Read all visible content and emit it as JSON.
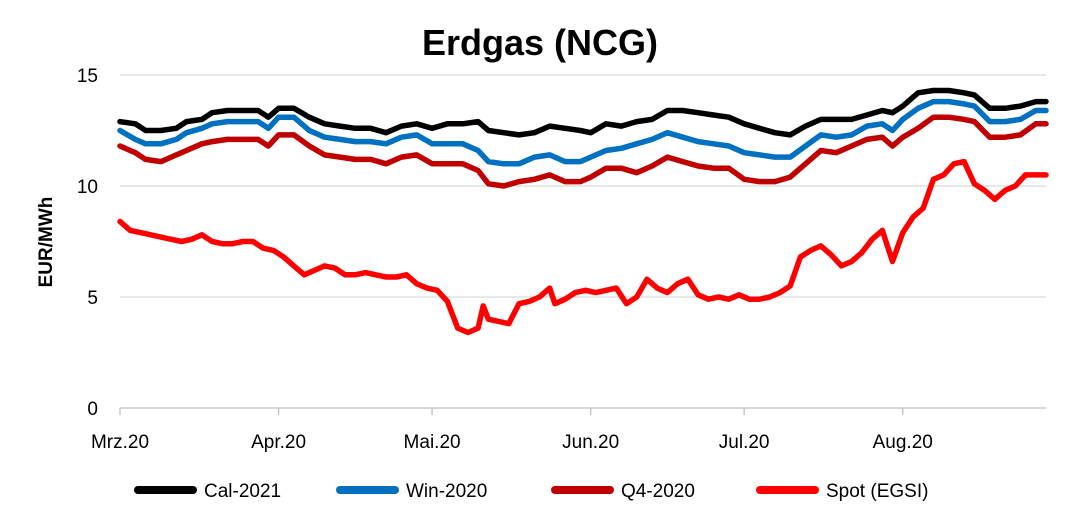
{
  "chart_data": {
    "type": "line",
    "title": "Erdgas (NCG)",
    "ylabel": "EUR/MWh",
    "xlabel": "",
    "ylim": [
      0,
      15
    ],
    "yticks": [
      0,
      5,
      10,
      15
    ],
    "xticks": [
      {
        "label": "Mrz.20",
        "day": 0
      },
      {
        "label": "Apr.20",
        "day": 31
      },
      {
        "label": "Mai.20",
        "day": 61
      },
      {
        "label": "Jun.20",
        "day": 92
      },
      {
        "label": "Jul.20",
        "day": 122
      },
      {
        "label": "Aug.20",
        "day": 153
      }
    ],
    "xmax_day": 181,
    "grid": "horizontal",
    "legend": "bottom",
    "series": [
      {
        "name": "Cal-2021",
        "color": "#000000",
        "points": [
          [
            0,
            12.9
          ],
          [
            3,
            12.8
          ],
          [
            5,
            12.5
          ],
          [
            8,
            12.5
          ],
          [
            11,
            12.6
          ],
          [
            13,
            12.9
          ],
          [
            16,
            13.0
          ],
          [
            18,
            13.3
          ],
          [
            21,
            13.4
          ],
          [
            24,
            13.4
          ],
          [
            27,
            13.4
          ],
          [
            29,
            13.1
          ],
          [
            31,
            13.5
          ],
          [
            34,
            13.5
          ],
          [
            37,
            13.1
          ],
          [
            40,
            12.8
          ],
          [
            43,
            12.7
          ],
          [
            46,
            12.6
          ],
          [
            49,
            12.6
          ],
          [
            52,
            12.4
          ],
          [
            55,
            12.7
          ],
          [
            58,
            12.8
          ],
          [
            61,
            12.6
          ],
          [
            64,
            12.8
          ],
          [
            67,
            12.8
          ],
          [
            70,
            12.9
          ],
          [
            72,
            12.5
          ],
          [
            75,
            12.4
          ],
          [
            78,
            12.3
          ],
          [
            81,
            12.4
          ],
          [
            84,
            12.7
          ],
          [
            87,
            12.6
          ],
          [
            90,
            12.5
          ],
          [
            92,
            12.4
          ],
          [
            95,
            12.8
          ],
          [
            98,
            12.7
          ],
          [
            101,
            12.9
          ],
          [
            104,
            13.0
          ],
          [
            107,
            13.4
          ],
          [
            110,
            13.4
          ],
          [
            113,
            13.3
          ],
          [
            116,
            13.2
          ],
          [
            119,
            13.1
          ],
          [
            122,
            12.8
          ],
          [
            125,
            12.6
          ],
          [
            128,
            12.4
          ],
          [
            131,
            12.3
          ],
          [
            134,
            12.7
          ],
          [
            137,
            13.0
          ],
          [
            140,
            13.0
          ],
          [
            143,
            13.0
          ],
          [
            146,
            13.2
          ],
          [
            149,
            13.4
          ],
          [
            151,
            13.3
          ],
          [
            153,
            13.6
          ],
          [
            156,
            14.2
          ],
          [
            159,
            14.3
          ],
          [
            162,
            14.3
          ],
          [
            165,
            14.2
          ],
          [
            167,
            14.1
          ],
          [
            170,
            13.5
          ],
          [
            173,
            13.5
          ],
          [
            176,
            13.6
          ],
          [
            179,
            13.8
          ],
          [
            181,
            13.8
          ]
        ]
      },
      {
        "name": "Win-2020",
        "color": "#0070c0",
        "points": [
          [
            0,
            12.5
          ],
          [
            3,
            12.1
          ],
          [
            5,
            11.9
          ],
          [
            8,
            11.9
          ],
          [
            11,
            12.1
          ],
          [
            13,
            12.4
          ],
          [
            16,
            12.6
          ],
          [
            18,
            12.8
          ],
          [
            21,
            12.9
          ],
          [
            24,
            12.9
          ],
          [
            27,
            12.9
          ],
          [
            29,
            12.6
          ],
          [
            31,
            13.1
          ],
          [
            34,
            13.1
          ],
          [
            37,
            12.5
          ],
          [
            40,
            12.2
          ],
          [
            43,
            12.1
          ],
          [
            46,
            12.0
          ],
          [
            49,
            12.0
          ],
          [
            52,
            11.9
          ],
          [
            55,
            12.2
          ],
          [
            58,
            12.3
          ],
          [
            61,
            11.9
          ],
          [
            64,
            11.9
          ],
          [
            67,
            11.9
          ],
          [
            70,
            11.6
          ],
          [
            72,
            11.1
          ],
          [
            75,
            11.0
          ],
          [
            78,
            11.0
          ],
          [
            81,
            11.3
          ],
          [
            84,
            11.4
          ],
          [
            87,
            11.1
          ],
          [
            90,
            11.1
          ],
          [
            92,
            11.3
          ],
          [
            95,
            11.6
          ],
          [
            98,
            11.7
          ],
          [
            101,
            11.9
          ],
          [
            104,
            12.1
          ],
          [
            107,
            12.4
          ],
          [
            110,
            12.2
          ],
          [
            113,
            12.0
          ],
          [
            116,
            11.9
          ],
          [
            119,
            11.8
          ],
          [
            122,
            11.5
          ],
          [
            125,
            11.4
          ],
          [
            128,
            11.3
          ],
          [
            131,
            11.3
          ],
          [
            134,
            11.8
          ],
          [
            137,
            12.3
          ],
          [
            140,
            12.2
          ],
          [
            143,
            12.3
          ],
          [
            146,
            12.7
          ],
          [
            149,
            12.8
          ],
          [
            151,
            12.5
          ],
          [
            153,
            13.0
          ],
          [
            156,
            13.5
          ],
          [
            159,
            13.8
          ],
          [
            162,
            13.8
          ],
          [
            165,
            13.7
          ],
          [
            167,
            13.6
          ],
          [
            170,
            12.9
          ],
          [
            173,
            12.9
          ],
          [
            176,
            13.0
          ],
          [
            179,
            13.4
          ],
          [
            181,
            13.4
          ]
        ]
      },
      {
        "name": "Q4-2020",
        "color": "#c00000",
        "points": [
          [
            0,
            11.8
          ],
          [
            3,
            11.5
          ],
          [
            5,
            11.2
          ],
          [
            8,
            11.1
          ],
          [
            11,
            11.4
          ],
          [
            13,
            11.6
          ],
          [
            16,
            11.9
          ],
          [
            18,
            12.0
          ],
          [
            21,
            12.1
          ],
          [
            24,
            12.1
          ],
          [
            27,
            12.1
          ],
          [
            29,
            11.8
          ],
          [
            31,
            12.3
          ],
          [
            34,
            12.3
          ],
          [
            37,
            11.8
          ],
          [
            40,
            11.4
          ],
          [
            43,
            11.3
          ],
          [
            46,
            11.2
          ],
          [
            49,
            11.2
          ],
          [
            52,
            11.0
          ],
          [
            55,
            11.3
          ],
          [
            58,
            11.4
          ],
          [
            61,
            11.0
          ],
          [
            64,
            11.0
          ],
          [
            67,
            11.0
          ],
          [
            70,
            10.7
          ],
          [
            72,
            10.1
          ],
          [
            75,
            10.0
          ],
          [
            78,
            10.2
          ],
          [
            81,
            10.3
          ],
          [
            84,
            10.5
          ],
          [
            87,
            10.2
          ],
          [
            90,
            10.2
          ],
          [
            92,
            10.4
          ],
          [
            95,
            10.8
          ],
          [
            98,
            10.8
          ],
          [
            101,
            10.6
          ],
          [
            104,
            10.9
          ],
          [
            107,
            11.3
          ],
          [
            110,
            11.1
          ],
          [
            113,
            10.9
          ],
          [
            116,
            10.8
          ],
          [
            119,
            10.8
          ],
          [
            122,
            10.3
          ],
          [
            125,
            10.2
          ],
          [
            128,
            10.2
          ],
          [
            131,
            10.4
          ],
          [
            134,
            11.0
          ],
          [
            137,
            11.6
          ],
          [
            140,
            11.5
          ],
          [
            143,
            11.8
          ],
          [
            146,
            12.1
          ],
          [
            149,
            12.2
          ],
          [
            151,
            11.8
          ],
          [
            153,
            12.2
          ],
          [
            156,
            12.6
          ],
          [
            159,
            13.1
          ],
          [
            162,
            13.1
          ],
          [
            165,
            13.0
          ],
          [
            167,
            12.9
          ],
          [
            170,
            12.2
          ],
          [
            173,
            12.2
          ],
          [
            176,
            12.3
          ],
          [
            179,
            12.8
          ],
          [
            181,
            12.8
          ]
        ]
      },
      {
        "name": "Spot (EGSI)",
        "color": "#ff0000",
        "points": [
          [
            0,
            8.4
          ],
          [
            2,
            8.0
          ],
          [
            4,
            7.9
          ],
          [
            6,
            7.8
          ],
          [
            8,
            7.7
          ],
          [
            10,
            7.6
          ],
          [
            12,
            7.5
          ],
          [
            14,
            7.6
          ],
          [
            16,
            7.8
          ],
          [
            18,
            7.5
          ],
          [
            20,
            7.4
          ],
          [
            22,
            7.4
          ],
          [
            24,
            7.5
          ],
          [
            26,
            7.5
          ],
          [
            28,
            7.2
          ],
          [
            30,
            7.1
          ],
          [
            32,
            6.8
          ],
          [
            34,
            6.4
          ],
          [
            36,
            6.0
          ],
          [
            38,
            6.2
          ],
          [
            40,
            6.4
          ],
          [
            42,
            6.3
          ],
          [
            44,
            6.0
          ],
          [
            46,
            6.0
          ],
          [
            48,
            6.1
          ],
          [
            50,
            6.0
          ],
          [
            52,
            5.9
          ],
          [
            54,
            5.9
          ],
          [
            56,
            6.0
          ],
          [
            58,
            5.6
          ],
          [
            60,
            5.4
          ],
          [
            62,
            5.3
          ],
          [
            64,
            4.8
          ],
          [
            66,
            3.6
          ],
          [
            68,
            3.4
          ],
          [
            70,
            3.6
          ],
          [
            71,
            4.6
          ],
          [
            72,
            4.0
          ],
          [
            74,
            3.9
          ],
          [
            76,
            3.8
          ],
          [
            78,
            4.7
          ],
          [
            80,
            4.8
          ],
          [
            82,
            5.0
          ],
          [
            84,
            5.4
          ],
          [
            85,
            4.7
          ],
          [
            87,
            4.9
          ],
          [
            89,
            5.2
          ],
          [
            91,
            5.3
          ],
          [
            93,
            5.2
          ],
          [
            95,
            5.3
          ],
          [
            97,
            5.4
          ],
          [
            99,
            4.7
          ],
          [
            101,
            5.0
          ],
          [
            103,
            5.8
          ],
          [
            105,
            5.4
          ],
          [
            107,
            5.2
          ],
          [
            109,
            5.6
          ],
          [
            111,
            5.8
          ],
          [
            113,
            5.1
          ],
          [
            115,
            4.9
          ],
          [
            117,
            5.0
          ],
          [
            119,
            4.9
          ],
          [
            121,
            5.1
          ],
          [
            123,
            4.9
          ],
          [
            125,
            4.9
          ],
          [
            127,
            5.0
          ],
          [
            129,
            5.2
          ],
          [
            131,
            5.5
          ],
          [
            133,
            6.8
          ],
          [
            135,
            7.1
          ],
          [
            137,
            7.3
          ],
          [
            139,
            6.9
          ],
          [
            141,
            6.4
          ],
          [
            143,
            6.6
          ],
          [
            145,
            7.0
          ],
          [
            147,
            7.6
          ],
          [
            149,
            8.0
          ],
          [
            151,
            6.6
          ],
          [
            153,
            7.9
          ],
          [
            155,
            8.6
          ],
          [
            157,
            9.0
          ],
          [
            159,
            10.3
          ],
          [
            161,
            10.5
          ],
          [
            163,
            11.0
          ],
          [
            165,
            11.1
          ],
          [
            167,
            10.1
          ],
          [
            169,
            9.8
          ],
          [
            171,
            9.4
          ],
          [
            173,
            9.8
          ],
          [
            175,
            10.0
          ],
          [
            177,
            10.5
          ],
          [
            179,
            10.5
          ],
          [
            181,
            10.5
          ]
        ]
      }
    ]
  }
}
